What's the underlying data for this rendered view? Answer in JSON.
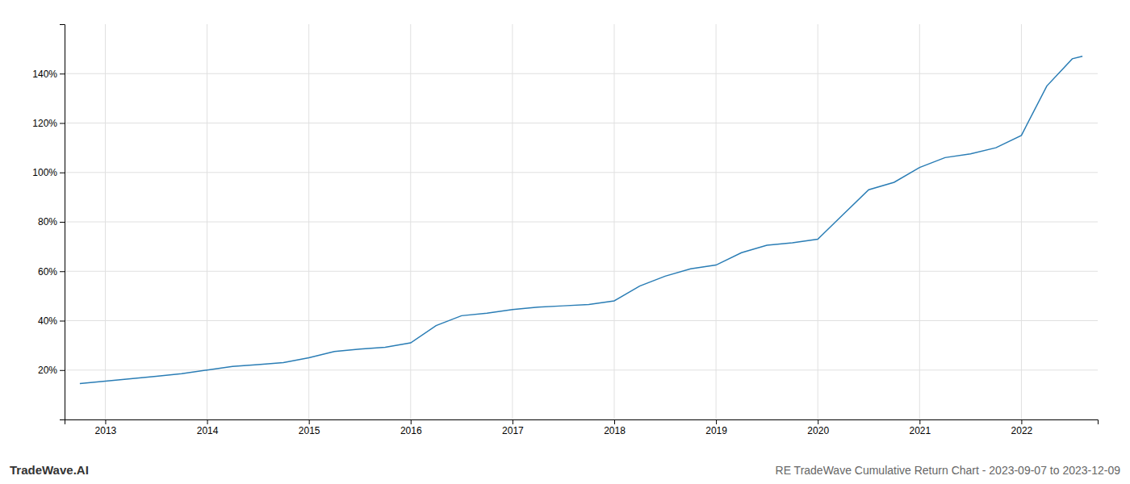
{
  "chart_data": {
    "type": "line",
    "title": "RE TradeWave Cumulative Return Chart - 2023-09-07 to 2023-12-09",
    "annotations": [
      "TradeWave.AI"
    ],
    "x": [
      2012.75,
      2013.0,
      2013.25,
      2013.5,
      2013.75,
      2014.0,
      2014.25,
      2014.5,
      2014.75,
      2015.0,
      2015.25,
      2015.5,
      2015.75,
      2016.0,
      2016.25,
      2016.5,
      2016.75,
      2017.0,
      2017.25,
      2017.5,
      2017.75,
      2018.0,
      2018.25,
      2018.5,
      2018.75,
      2019.0,
      2019.25,
      2019.5,
      2019.75,
      2020.0,
      2020.25,
      2020.5,
      2020.75,
      2021.0,
      2021.25,
      2021.5,
      2021.75,
      2022.0,
      2022.25,
      2022.5,
      2022.6
    ],
    "values": [
      14.5,
      15.5,
      16.5,
      17.5,
      18.5,
      20.0,
      21.5,
      22.2,
      23.0,
      25.0,
      27.5,
      28.5,
      29.2,
      31.0,
      38.0,
      42.0,
      43.0,
      44.5,
      45.5,
      46.0,
      46.5,
      48.0,
      54.0,
      58.0,
      61.0,
      62.5,
      67.5,
      70.5,
      71.5,
      73.0,
      83.0,
      93.0,
      96.0,
      102.0,
      106.0,
      107.5,
      110.0,
      115.0,
      135.0,
      146.0,
      147.0
    ],
    "color": "#2a7db5",
    "xlim": [
      2012.6,
      2022.75
    ],
    "xticks": [
      2013,
      2014,
      2015,
      2016,
      2017,
      2018,
      2019,
      2020,
      2021,
      2022
    ],
    "ylim": [
      0,
      160
    ],
    "yticks": [
      {
        "value": 20,
        "label": "20%"
      },
      {
        "value": 40,
        "label": "40%"
      },
      {
        "value": 60,
        "label": "60%"
      },
      {
        "value": 80,
        "label": "80%"
      },
      {
        "value": 100,
        "label": "100%"
      },
      {
        "value": 120,
        "label": "120%"
      },
      {
        "value": 140,
        "label": "140%"
      }
    ],
    "grid": true
  }
}
